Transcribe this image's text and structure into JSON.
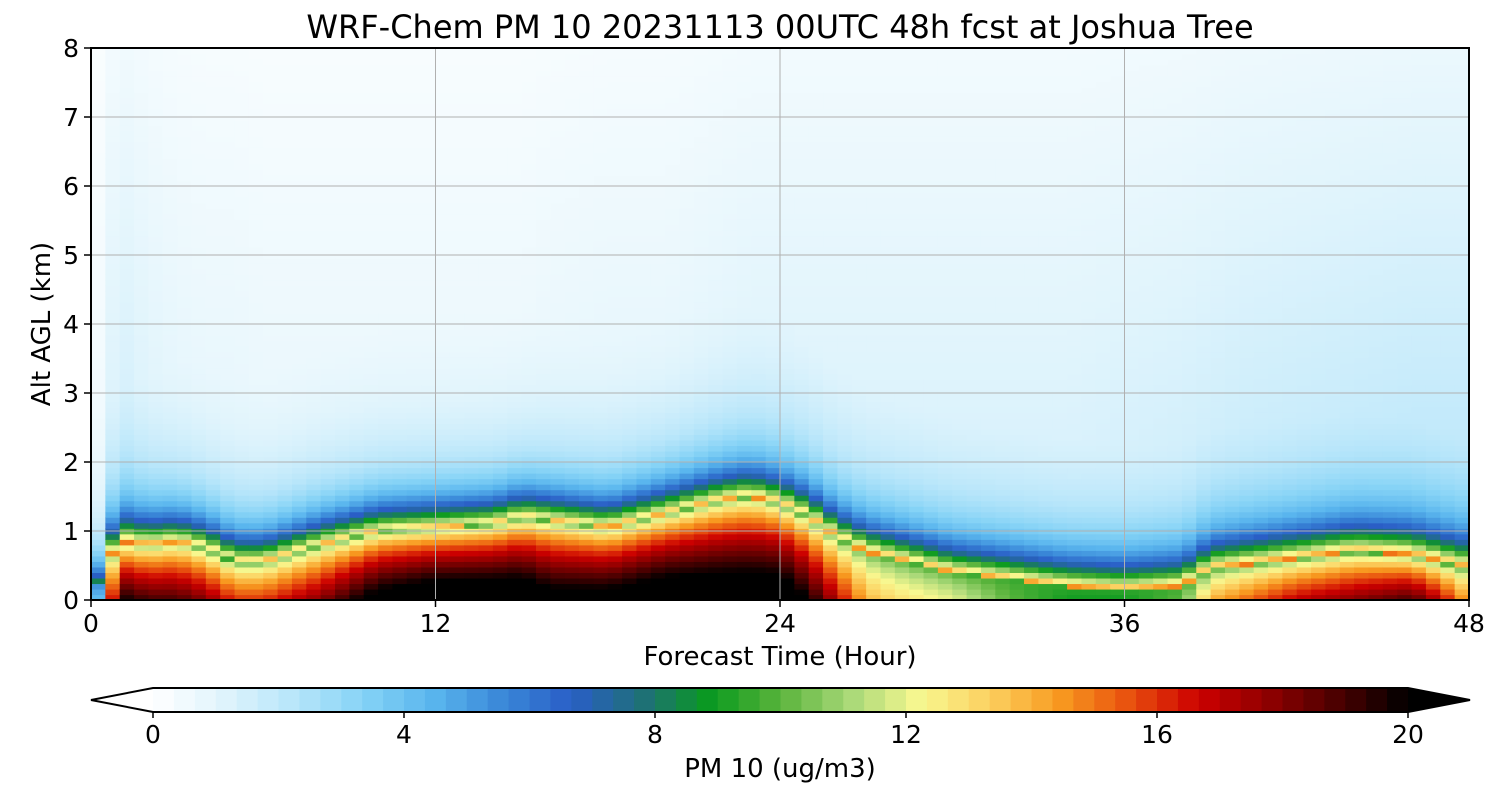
{
  "chart_data": {
    "type": "heatmap",
    "title": "WRF-Chem PM 10  20231113 00UTC 48h fcst at Joshua Tree",
    "xlabel": "Forecast Time (Hour)",
    "ylabel": "Alt AGL (km)",
    "xlim": [
      0,
      48
    ],
    "ylim": [
      0,
      8
    ],
    "xticks": [
      0,
      12,
      24,
      36,
      48
    ],
    "yticks": [
      0,
      1,
      2,
      3,
      4,
      5,
      6,
      7,
      8
    ],
    "grid": true,
    "colorbar": {
      "label": "PM 10  (ug/m3)",
      "range": [
        0,
        20
      ],
      "ticks": [
        0,
        4,
        8,
        12,
        16,
        20
      ],
      "extend": "both",
      "orientation": "horizontal",
      "colors": [
        "#ffffff",
        "#e0f4fc",
        "#b8e6fa",
        "#86d3f6",
        "#5ab6ee",
        "#3a88d8",
        "#2a5ec6",
        "#1f6f7a",
        "#0a9a1e",
        "#5ab43c",
        "#a8d878",
        "#f8f890",
        "#fcd060",
        "#f89a20",
        "#e8500e",
        "#cc0000",
        "#8e0000",
        "#4a0000",
        "#000000"
      ]
    },
    "x": [
      0,
      0.5,
      1,
      2,
      3,
      4,
      5,
      6,
      8,
      10,
      12,
      14,
      15,
      16,
      18,
      20,
      22,
      23,
      24,
      25,
      26,
      27,
      28,
      30,
      32,
      34,
      36,
      38,
      39,
      40,
      42,
      44,
      46,
      47,
      48
    ],
    "core_top_km": [
      0,
      0.5,
      0.85,
      0.8,
      0.85,
      0.75,
      0.55,
      0.55,
      0.8,
      1.0,
      1.05,
      1.1,
      1.2,
      1.15,
      1.05,
      1.25,
      1.45,
      1.5,
      1.4,
      1.2,
      0.9,
      0.7,
      0.6,
      0.4,
      0.3,
      0.2,
      0.15,
      0.2,
      0.45,
      0.5,
      0.6,
      0.7,
      0.65,
      0.55,
      0.45
    ],
    "peak_ugm3": [
      0,
      13,
      20,
      19,
      19,
      18,
      16,
      16,
      18,
      21,
      22,
      22,
      22,
      21,
      21,
      22,
      22,
      22,
      22,
      20,
      17,
      14,
      13,
      12,
      10,
      9,
      9,
      10,
      14,
      15,
      17,
      18,
      19,
      17,
      14
    ],
    "background_ugm3": [
      0.4,
      1.0,
      1.6,
      1.2,
      1.0,
      0.9,
      0.9,
      0.8,
      0.8,
      0.8,
      0.8,
      0.8,
      0.8,
      0.9,
      1.0,
      1.0,
      1.2,
      1.3,
      1.3,
      1.3,
      1.3,
      1.3,
      1.3,
      1.3,
      1.3,
      1.3,
      1.4,
      1.5,
      1.6,
      1.7,
      1.8,
      1.9,
      2.0,
      2.0,
      2.0
    ]
  }
}
